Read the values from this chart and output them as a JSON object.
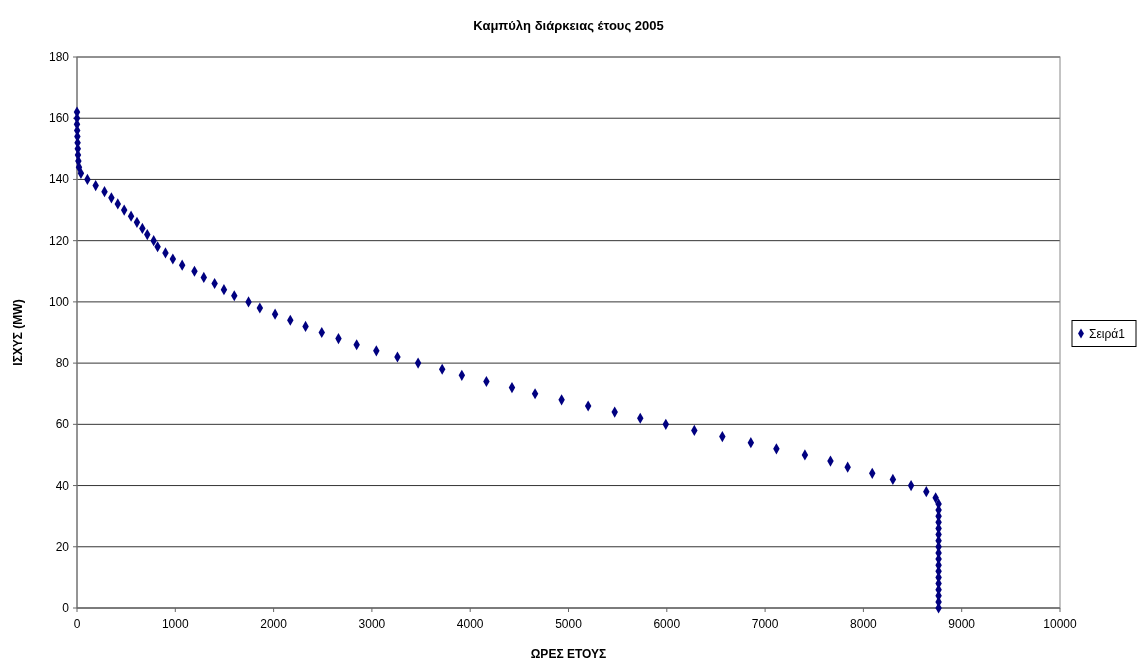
{
  "chart_data": {
    "type": "scatter",
    "title": "Καμπύλη διάρκειας έτους 2005",
    "xlabel": "ΩΡΕΣ    ΕΤΟΥΣ",
    "ylabel": "ΙΣΧΥΣ    (MW)",
    "xlim": [
      0,
      10000
    ],
    "xticks": [
      0,
      1000,
      2000,
      3000,
      4000,
      5000,
      6000,
      7000,
      8000,
      9000,
      10000
    ],
    "ylim": [
      0,
      180
    ],
    "yticks": [
      0,
      20,
      40,
      60,
      80,
      100,
      120,
      140,
      160,
      180
    ],
    "grid": "y",
    "legend": "right",
    "marker": "diamond",
    "series": [
      {
        "name": "Σειρά1",
        "color": "#000080",
        "x": [
          0,
          0,
          0,
          2,
          4,
          6,
          8,
          10,
          14,
          20,
          40,
          106,
          190,
          280,
          350,
          415,
          480,
          550,
          610,
          665,
          715,
          780,
          820,
          900,
          975,
          1070,
          1195,
          1290,
          1400,
          1495,
          1600,
          1745,
          1860,
          2015,
          2170,
          2325,
          2490,
          2660,
          2845,
          3045,
          3260,
          3470,
          3715,
          3915,
          4165,
          4425,
          4660,
          4930,
          5200,
          5470,
          5730,
          5990,
          6280,
          6565,
          6855,
          7115,
          7405,
          7665,
          7840,
          8090,
          8300,
          8485,
          8640,
          8735,
          8765,
          8765,
          8765,
          8765,
          8765,
          8765,
          8765,
          8765,
          8765,
          8765,
          8765,
          8765,
          8765,
          8765,
          8765,
          8765,
          8765,
          8765
        ],
        "values": [
          162,
          160,
          158,
          156,
          154,
          152,
          150,
          148,
          146,
          144,
          142,
          140,
          138,
          136,
          134,
          132,
          130,
          128,
          126,
          124,
          122,
          120,
          118,
          116,
          114,
          112,
          110,
          108,
          106,
          104,
          102,
          100,
          98,
          96,
          94,
          92,
          90,
          88,
          86,
          84,
          82,
          80,
          78,
          76,
          74,
          72,
          70,
          68,
          66,
          64,
          62,
          60,
          58,
          56,
          54,
          52,
          50,
          48,
          46,
          44,
          42,
          40,
          38,
          36,
          34,
          32,
          30,
          28,
          26,
          24,
          22,
          20,
          18,
          16,
          14,
          12,
          10,
          8,
          6,
          4,
          2,
          0
        ]
      }
    ]
  }
}
